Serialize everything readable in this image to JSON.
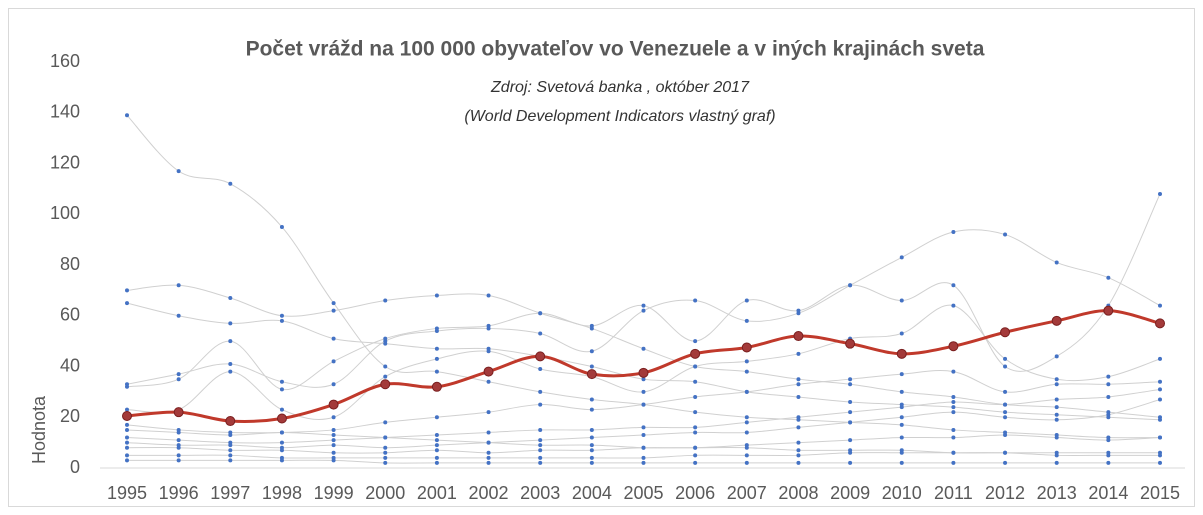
{
  "chart_data": {
    "type": "line",
    "title": "Počet vrážd na 100 000 obyvateľov vo Venezuele a v iných krajinách sveta",
    "subtitle": [
      "Zdroj: Svetová banka , október 2017",
      "(World Development Indicators vlastný graf)"
    ],
    "y_label": "Hodnota",
    "categories": [
      "1995",
      "1996",
      "1997",
      "1998",
      "1999",
      "2000",
      "2001",
      "2002",
      "2003",
      "2004",
      "2005",
      "2006",
      "2007",
      "2008",
      "2009",
      "2010",
      "2011",
      "2012",
      "2013",
      "2014",
      "2015"
    ],
    "ylim": [
      0,
      160
    ],
    "yticks": [
      0,
      20,
      40,
      60,
      80,
      100,
      120,
      140,
      160
    ],
    "series": [
      {
        "color": "#d0d0d0",
        "marker_color": "#4472c4",
        "values": [
          139,
          117,
          112,
          95,
          65,
          40,
          38,
          34,
          30,
          27,
          25,
          22,
          20,
          19,
          18,
          17,
          15,
          14,
          13,
          12,
          12
        ]
      },
      {
        "color": "#d0d0d0",
        "marker_color": "#4472c4",
        "values": [
          70,
          72,
          67,
          60,
          62,
          66,
          68,
          68,
          61,
          55,
          47,
          40,
          38,
          35,
          33,
          30,
          28,
          25,
          24,
          22,
          20
        ]
      },
      {
        "color": "#d0d0d0",
        "marker_color": "#4472c4",
        "values": [
          65,
          60,
          57,
          58,
          51,
          49,
          47,
          47,
          44,
          40,
          35,
          34,
          30,
          28,
          26,
          25,
          24,
          22,
          21,
          20,
          19
        ]
      },
      {
        "color": "#d0d0d0",
        "marker_color": "#4472c4",
        "values": [
          33,
          37,
          41,
          34,
          33,
          50,
          54,
          55,
          53,
          46,
          62,
          66,
          58,
          61,
          72,
          83,
          93,
          92,
          81,
          75,
          64
        ]
      },
      {
        "color": "#d0d0d0",
        "marker_color": "#4472c4",
        "values": [
          32,
          35,
          50,
          31,
          42,
          51,
          55,
          56,
          61,
          56,
          64,
          50,
          66,
          62,
          72,
          66,
          72,
          40,
          44,
          64,
          108
        ]
      },
      {
        "color": "#d0d0d0",
        "marker_color": "#4472c4",
        "values": [
          23,
          23,
          38,
          23,
          20,
          36,
          43,
          46,
          39,
          36,
          30,
          40,
          42,
          45,
          51,
          53,
          64,
          43,
          35,
          36,
          43
        ]
      },
      {
        "color": "#d0d0d0",
        "marker_color": "#4472c4",
        "values": [
          17,
          15,
          14,
          14,
          15,
          18,
          20,
          22,
          25,
          23,
          25,
          28,
          30,
          33,
          35,
          37,
          38,
          30,
          33,
          33,
          34
        ]
      },
      {
        "color": "#d0d0d0",
        "marker_color": "#4472c4",
        "values": [
          12,
          11,
          10,
          10,
          11,
          12,
          13,
          14,
          15,
          15,
          16,
          16,
          18,
          20,
          22,
          24,
          26,
          25,
          27,
          28,
          31
        ]
      },
      {
        "color": "#d0d0d0",
        "marker_color": "#4472c4",
        "values": [
          10,
          9,
          9,
          8,
          9,
          8,
          9,
          10,
          11,
          12,
          13,
          14,
          14,
          16,
          18,
          20,
          22,
          20,
          19,
          21,
          27
        ]
      },
      {
        "color": "#d0d0d0",
        "marker_color": "#4472c4",
        "values": [
          15,
          14,
          13,
          14,
          13,
          12,
          11,
          10,
          9,
          9,
          8,
          8,
          8,
          7,
          7,
          7,
          6,
          6,
          6,
          6,
          6
        ]
      },
      {
        "color": "#d0d0d0",
        "marker_color": "#4472c4",
        "values": [
          8,
          8,
          7,
          7,
          6,
          6,
          7,
          6,
          7,
          7,
          8,
          8,
          9,
          10,
          11,
          12,
          12,
          13,
          12,
          11,
          12
        ]
      },
      {
        "color": "#d0d0d0",
        "marker_color": "#4472c4",
        "values": [
          5,
          5,
          5,
          4,
          4,
          4,
          4,
          4,
          4,
          4,
          4,
          5,
          5,
          5,
          6,
          6,
          6,
          6,
          5,
          5,
          5
        ]
      },
      {
        "color": "#d0d0d0",
        "marker_color": "#4472c4",
        "values": [
          3,
          3,
          3,
          3,
          3,
          2,
          2,
          2,
          2,
          2,
          2,
          2,
          2,
          2,
          2,
          2,
          2,
          2,
          2,
          2,
          2
        ]
      },
      {
        "color": "#c0392b",
        "marker_color": "#a33a3a",
        "values": [
          20.5,
          22,
          18.5,
          19.5,
          25,
          33,
          32,
          38,
          44,
          37,
          37.5,
          45,
          47.5,
          52,
          49,
          45,
          48,
          53.5,
          58,
          62,
          57
        ]
      }
    ]
  }
}
